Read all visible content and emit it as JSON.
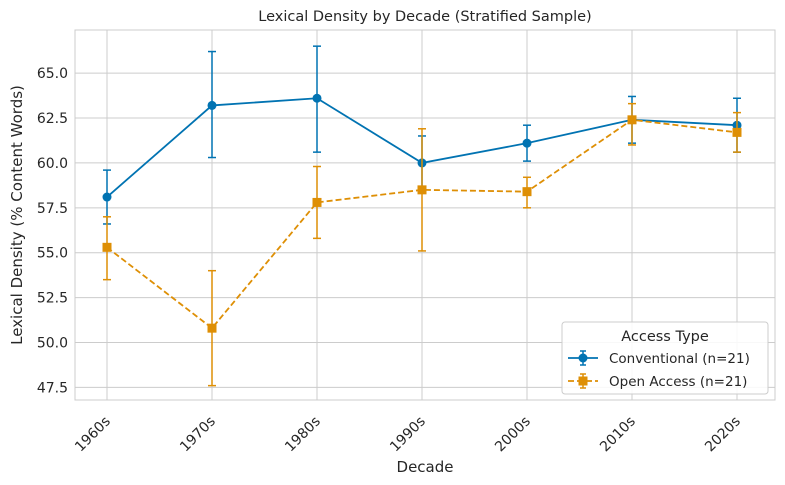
{
  "chart_data": {
    "type": "line",
    "title": "Lexical Density by Decade (Stratified Sample)",
    "xlabel": "Decade",
    "ylabel": "Lexical Density (% Content Words)",
    "categories": [
      "1960s",
      "1970s",
      "1980s",
      "1990s",
      "2000s",
      "2010s",
      "2020s"
    ],
    "ylim": [
      46.8,
      67.4
    ],
    "yticks": [
      47.5,
      50.0,
      52.5,
      55.0,
      57.5,
      60.0,
      62.5,
      65.0
    ],
    "ytick_labels": [
      "47.5",
      "50.0",
      "52.5",
      "55.0",
      "57.5",
      "60.0",
      "62.5",
      "65.0"
    ],
    "grid": true,
    "legend": {
      "title": "Access Type",
      "placement": "lower-right"
    },
    "series": [
      {
        "name": "Conventional (n=21)",
        "color": "#0173b2",
        "marker": "circle",
        "linestyle": "solid",
        "values": [
          58.1,
          63.2,
          63.6,
          60.0,
          61.1,
          62.4,
          62.1
        ],
        "err_low": [
          56.6,
          60.3,
          60.6,
          58.5,
          60.1,
          61.1,
          60.6
        ],
        "err_high": [
          59.6,
          66.2,
          66.5,
          61.5,
          62.1,
          63.7,
          63.6
        ]
      },
      {
        "name": "Open Access (n=21)",
        "color": "#de8f05",
        "marker": "square",
        "linestyle": "dashed",
        "values": [
          55.3,
          50.8,
          57.8,
          58.5,
          58.4,
          62.4,
          61.7
        ],
        "err_low": [
          53.5,
          47.6,
          55.8,
          55.1,
          57.5,
          61.0,
          60.6
        ],
        "err_high": [
          57.0,
          54.0,
          59.8,
          61.9,
          59.2,
          63.3,
          62.8
        ]
      }
    ]
  }
}
